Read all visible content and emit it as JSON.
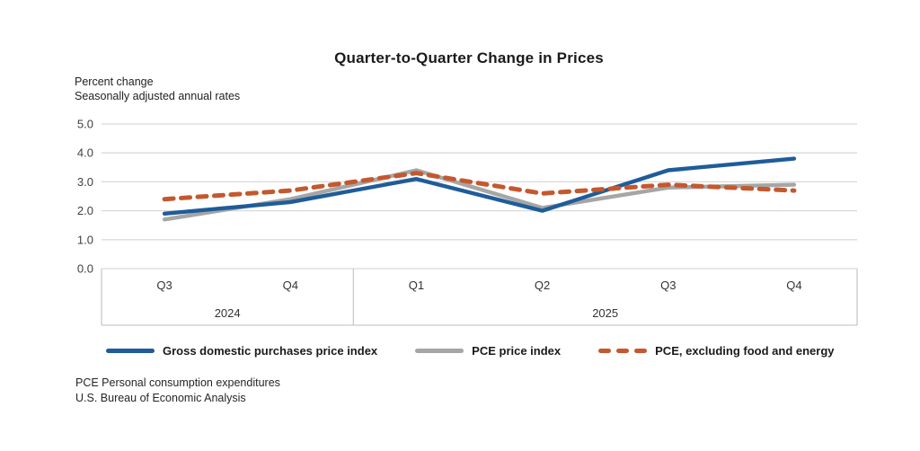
{
  "title": "Quarter-to-Quarter Change in Prices",
  "axis_note": {
    "line1": "Percent change",
    "line2": "Seasonally adjusted annual rates"
  },
  "footnotes": [
    "PCE Personal consumption expenditures",
    "U.S. Bureau of Economic Analysis"
  ],
  "colors": {
    "blue_series": "#1F5C99",
    "gray_series": "#A6A6A6",
    "orange_series": "#C4582E",
    "gridline": "#D9D9D9",
    "axis_box_border": "#C9C9C9",
    "tick_label": "#404040",
    "background": "#FFFFFF"
  },
  "chart_data": {
    "type": "line",
    "categories": [
      "Q3",
      "Q4",
      "Q1",
      "Q2",
      "Q3",
      "Q4"
    ],
    "year_groups": [
      {
        "label": "2024",
        "span": 2
      },
      {
        "label": "2025",
        "span": 4
      }
    ],
    "y_ticks": [
      "5.0",
      "4.0",
      "3.0",
      "2.0",
      "1.0",
      "0.0"
    ],
    "ylim": [
      0,
      5
    ],
    "grid": true,
    "legend_position": "bottom",
    "series": [
      {
        "name": "Gross domestic purchases price index",
        "color": "#1F5C99",
        "style": "solid",
        "values": [
          1.9,
          2.3,
          3.1,
          2.0,
          3.4,
          3.8
        ]
      },
      {
        "name": "PCE price index",
        "color": "#A6A6A6",
        "style": "solid",
        "values": [
          1.7,
          2.4,
          3.4,
          2.1,
          2.8,
          2.9
        ]
      },
      {
        "name": "PCE, excluding food and energy",
        "color": "#C4582E",
        "style": "dashed",
        "values": [
          2.4,
          2.7,
          3.3,
          2.6,
          2.9,
          2.7
        ]
      }
    ]
  }
}
